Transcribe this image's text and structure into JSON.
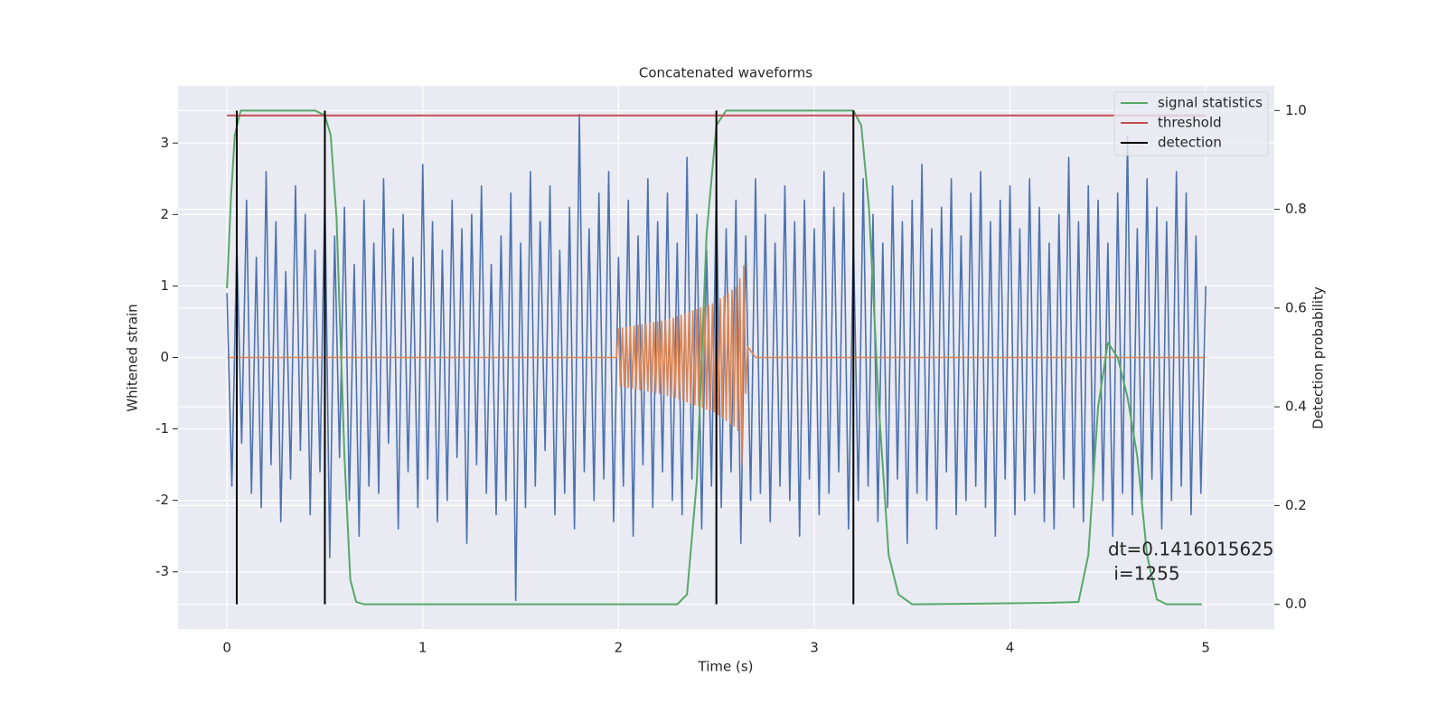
{
  "chart_data": {
    "type": "line",
    "title": "Concatenated waveforms",
    "xlabel": "Time (s)",
    "ylabel": "Whitened strain",
    "y2label": "Detection probability",
    "annotation": [
      "dt=0.1416015625",
      " i=1255"
    ],
    "xlim": [
      -0.25,
      5.35
    ],
    "ylim": [
      -3.8,
      3.8
    ],
    "y2lim": [
      -0.05,
      1.05
    ],
    "xticks": [
      0,
      1,
      2,
      3,
      4,
      5
    ],
    "yticks": [
      -3,
      -2,
      -1,
      0,
      1,
      2,
      3
    ],
    "y2ticks": [
      {
        "value": 0,
        "label": "0.0"
      },
      0.2,
      0.4,
      0.6,
      0.8,
      {
        "value": 1,
        "label": "1.0"
      }
    ],
    "grid": true,
    "legend": "upper right",
    "series": [
      {
        "color": "#4c72b0",
        "axis": "y",
        "x": [
          0,
          0.025,
          0.05,
          0.075,
          0.1,
          0.125,
          0.15,
          0.175,
          0.2,
          0.225,
          0.25,
          0.275,
          0.3,
          0.325,
          0.35,
          0.375,
          0.4,
          0.425,
          0.45,
          0.475,
          0.5,
          0.525,
          0.55,
          0.575,
          0.6,
          0.625,
          0.65,
          0.675,
          0.7,
          0.725,
          0.75,
          0.775,
          0.8,
          0.825,
          0.85,
          0.875,
          0.9,
          0.925,
          0.95,
          0.975,
          1,
          1.025,
          1.05,
          1.075,
          1.1,
          1.125,
          1.15,
          1.175,
          1.2,
          1.225,
          1.25,
          1.275,
          1.3,
          1.325,
          1.35,
          1.375,
          1.4,
          1.425,
          1.45,
          1.475,
          1.5,
          1.525,
          1.55,
          1.575,
          1.6,
          1.625,
          1.65,
          1.675,
          1.7,
          1.725,
          1.75,
          1.775,
          1.8,
          1.825,
          1.85,
          1.875,
          1.9,
          1.925,
          1.95,
          1.975,
          2,
          2.025,
          2.05,
          2.075,
          2.1,
          2.125,
          2.15,
          2.175,
          2.2,
          2.225,
          2.25,
          2.275,
          2.3,
          2.325,
          2.35,
          2.375,
          2.4,
          2.425,
          2.45,
          2.475,
          2.5,
          2.525,
          2.55,
          2.575,
          2.6,
          2.625,
          2.65,
          2.675,
          2.7,
          2.725,
          2.75,
          2.775,
          2.8,
          2.825,
          2.85,
          2.875,
          2.9,
          2.925,
          2.95,
          2.975,
          3,
          3.025,
          3.05,
          3.075,
          3.1,
          3.125,
          3.15,
          3.175,
          3.2,
          3.225,
          3.25,
          3.275,
          3.3,
          3.325,
          3.35,
          3.375,
          3.4,
          3.425,
          3.45,
          3.475,
          3.5,
          3.525,
          3.55,
          3.575,
          3.6,
          3.625,
          3.65,
          3.675,
          3.7,
          3.725,
          3.75,
          3.775,
          3.8,
          3.825,
          3.85,
          3.875,
          3.9,
          3.925,
          3.95,
          3.975,
          4,
          4.025,
          4.05,
          4.075,
          4.1,
          4.125,
          4.15,
          4.175,
          4.2,
          4.225,
          4.25,
          4.275,
          4.3,
          4.325,
          4.35,
          4.375,
          4.4,
          4.425,
          4.45,
          4.475,
          4.5,
          4.525,
          4.55,
          4.575,
          4.6,
          4.625,
          4.65,
          4.675,
          4.7,
          4.725,
          4.75,
          4.775,
          4.8,
          4.825,
          4.85,
          4.875,
          4.9,
          4.925,
          4.95,
          4.975,
          5
        ],
        "values": [
          0.9,
          -1.8,
          1.6,
          -1.2,
          2.2,
          -1.9,
          1.4,
          -2.1,
          2.6,
          -1.5,
          1.9,
          -2.3,
          1.2,
          -1.7,
          2.4,
          -1.3,
          2.0,
          -2.2,
          1.5,
          -1.6,
          2.3,
          -2.8,
          1.7,
          -1.4,
          2.1,
          -2.0,
          1.3,
          -2.5,
          2.2,
          -1.8,
          1.6,
          -1.9,
          2.5,
          -1.2,
          1.8,
          -2.4,
          2.0,
          -1.6,
          1.4,
          -2.1,
          2.7,
          -1.7,
          1.9,
          -2.3,
          1.5,
          -2.0,
          2.2,
          -1.4,
          1.8,
          -2.6,
          2.0,
          -1.5,
          2.4,
          -1.9,
          1.3,
          -2.2,
          1.7,
          -2.0,
          2.3,
          -3.4,
          1.6,
          -2.1,
          2.6,
          -1.8,
          1.9,
          -1.3,
          2.4,
          -2.2,
          1.5,
          -1.9,
          2.1,
          -2.4,
          3.4,
          -1.6,
          1.8,
          -2.0,
          2.3,
          -1.7,
          2.6,
          -2.3,
          1.4,
          -1.8,
          2.2,
          -2.5,
          1.7,
          -1.5,
          2.5,
          -2.1,
          1.9,
          -1.6,
          2.3,
          -2.0,
          1.6,
          -2.2,
          2.8,
          -1.7,
          2.0,
          -2.4,
          1.5,
          -1.8,
          2.4,
          -2.1,
          1.8,
          -1.6,
          2.2,
          -2.6,
          1.7,
          -2.0,
          2.5,
          -1.9,
          2.0,
          -2.3,
          1.6,
          -1.8,
          2.4,
          -2.0,
          1.9,
          -2.5,
          2.2,
          -1.7,
          1.8,
          -2.2,
          2.6,
          -1.9,
          2.1,
          -1.6,
          2.3,
          -2.4,
          1.7,
          -2.0,
          2.5,
          -1.8,
          2.0,
          -2.3,
          1.6,
          -2.1,
          2.4,
          -1.7,
          1.9,
          -2.6,
          2.2,
          -1.9,
          2.7,
          -2.0,
          1.8,
          -2.4,
          2.1,
          -1.6,
          2.5,
          -2.2,
          1.7,
          -2.0,
          2.3,
          -1.8,
          2.6,
          -2.1,
          1.9,
          -2.5,
          2.2,
          -1.7,
          2.4,
          -2.2,
          1.8,
          -2.0,
          2.5,
          -1.9,
          2.1,
          -2.3,
          1.6,
          -2.4,
          2.0,
          -1.7,
          2.8,
          -2.1,
          1.9,
          -2.3,
          2.4,
          -1.8,
          2.2,
          -2.0,
          1.6,
          -2.5,
          2.3,
          -1.9,
          3.1,
          -2.2,
          1.8,
          -2.0,
          2.5,
          -1.7,
          2.1,
          -2.4,
          1.9,
          -2.0,
          2.6,
          -1.8,
          2.3,
          -2.2,
          1.7,
          -1.9,
          1.0
        ]
      },
      {
        "color": "#dd8452",
        "axis": "y",
        "x": [
          0,
          1.99,
          2,
          2.01,
          2.02,
          2.03,
          2.04,
          2.05,
          2.06,
          2.07,
          2.08,
          2.09,
          2.1,
          2.11,
          2.12,
          2.13,
          2.14,
          2.15,
          2.16,
          2.17,
          2.18,
          2.19,
          2.2,
          2.21,
          2.22,
          2.23,
          2.24,
          2.25,
          2.26,
          2.27,
          2.28,
          2.29,
          2.3,
          2.31,
          2.32,
          2.33,
          2.34,
          2.35,
          2.36,
          2.37,
          2.38,
          2.39,
          2.4,
          2.41,
          2.42,
          2.43,
          2.44,
          2.45,
          2.46,
          2.47,
          2.48,
          2.49,
          2.5,
          2.51,
          2.52,
          2.53,
          2.54,
          2.55,
          2.56,
          2.57,
          2.58,
          2.59,
          2.6,
          2.61,
          2.62,
          2.63,
          2.64,
          2.65,
          2.66,
          2.7,
          5
        ],
        "values": [
          0,
          0,
          0.4,
          -0.4,
          0.41,
          -0.41,
          0.42,
          -0.42,
          0.43,
          -0.43,
          0.44,
          -0.44,
          0.45,
          -0.45,
          0.46,
          -0.46,
          0.47,
          -0.47,
          0.48,
          -0.48,
          0.49,
          -0.49,
          0.5,
          -0.5,
          0.51,
          -0.52,
          0.52,
          -0.53,
          0.54,
          -0.55,
          0.55,
          -0.56,
          0.57,
          -0.58,
          0.59,
          -0.6,
          0.61,
          -0.62,
          0.63,
          -0.64,
          0.65,
          -0.66,
          0.67,
          -0.68,
          0.69,
          -0.7,
          0.71,
          -0.72,
          0.73,
          -0.74,
          0.75,
          -0.76,
          0.78,
          -0.8,
          0.82,
          -0.84,
          0.86,
          -0.88,
          0.9,
          -0.92,
          0.94,
          -0.96,
          0.98,
          -1.02,
          1.1,
          -1.5,
          1.28,
          -0.5,
          0.15,
          0,
          0
        ]
      },
      {
        "name": "signal statistics",
        "color": "#55a868",
        "axis": "y2",
        "x": [
          0,
          0.02,
          0.04,
          0.07,
          0.45,
          0.5,
          0.53,
          0.56,
          0.6,
          0.63,
          0.66,
          0.7,
          2.3,
          2.35,
          2.4,
          2.45,
          2.5,
          2.55,
          3.2,
          3.24,
          3.28,
          3.33,
          3.38,
          3.43,
          3.5,
          4.2,
          4.35,
          4.4,
          4.45,
          4.5,
          4.55,
          4.6,
          4.65,
          4.7,
          4.75,
          4.8,
          4.98
        ],
        "values": [
          0.64,
          0.82,
          0.95,
          1,
          1,
          0.99,
          0.95,
          0.78,
          0.3,
          0.05,
          0.005,
          0,
          0,
          0.02,
          0.25,
          0.75,
          0.97,
          1,
          1,
          0.97,
          0.8,
          0.4,
          0.1,
          0.02,
          0,
          0.003,
          0.005,
          0.1,
          0.4,
          0.53,
          0.5,
          0.42,
          0.3,
          0.1,
          0.01,
          0,
          0
        ]
      },
      {
        "name": "threshold",
        "color": "#c44e52",
        "axis": "y2",
        "x": [
          0,
          5
        ],
        "values": [
          0.99,
          0.99
        ]
      },
      {
        "name": "detection",
        "color": "#000000",
        "axis": "y2",
        "kind": "vlines",
        "x": [
          0.05,
          0.5,
          2.5,
          3.2
        ],
        "ymin": 0,
        "ymax": 1
      }
    ]
  }
}
